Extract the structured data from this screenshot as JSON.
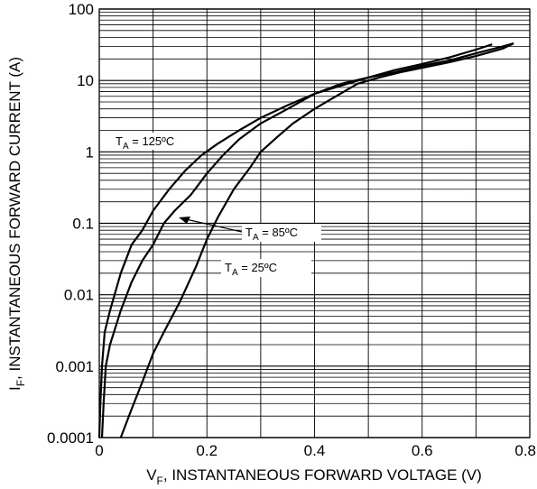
{
  "chart_data": {
    "type": "line",
    "x_scale": "linear",
    "y_scale": "log",
    "xlim": [
      0,
      0.8
    ],
    "ylim": [
      0.0001,
      100
    ],
    "grid": true,
    "x_ticks": [
      "0",
      "0.2",
      "0.4",
      "0.6",
      "0.8"
    ],
    "y_ticks": [
      "100",
      "10",
      "1",
      "0.1",
      "0.01",
      "0.001",
      "0.0001"
    ],
    "xlabel": {
      "main": "V",
      "sub": "F",
      "rest": ", INSTANTANEOUS FORWARD VOLTAGE (V)"
    },
    "ylabel": {
      "main": "I",
      "sub": "F",
      "rest": ", INSTANTANEOUS FORWARD CURRENT (A)"
    },
    "series": [
      {
        "name": {
          "main": "T",
          "sub": "A",
          "rest": " = 125ºC"
        },
        "x": [
          0.0,
          0.002,
          0.005,
          0.01,
          0.02,
          0.04,
          0.06,
          0.08,
          0.1,
          0.13,
          0.16,
          0.19,
          0.22,
          0.26,
          0.3,
          0.35,
          0.4,
          0.45,
          0.5,
          0.55,
          0.6,
          0.65,
          0.7,
          0.73
        ],
        "y": [
          0.0001,
          0.0003,
          0.001,
          0.003,
          0.006,
          0.02,
          0.05,
          0.08,
          0.15,
          0.3,
          0.55,
          0.9,
          1.3,
          2.0,
          3.0,
          4.5,
          6.5,
          8.5,
          11,
          14,
          17,
          21,
          27,
          32
        ]
      },
      {
        "name": {
          "main": "T",
          "sub": "A",
          "rest": " = 85ºC"
        },
        "x": [
          0.005,
          0.008,
          0.012,
          0.02,
          0.04,
          0.06,
          0.08,
          0.1,
          0.12,
          0.14,
          0.17,
          0.2,
          0.23,
          0.26,
          0.3,
          0.35,
          0.4,
          0.45,
          0.5,
          0.55,
          0.6,
          0.65,
          0.7,
          0.75,
          0.77
        ],
        "y": [
          0.0001,
          0.0003,
          0.001,
          0.002,
          0.006,
          0.015,
          0.03,
          0.05,
          0.1,
          0.15,
          0.25,
          0.5,
          0.9,
          1.5,
          2.5,
          4.0,
          6.5,
          9.0,
          11,
          13,
          16,
          19,
          24,
          30,
          33
        ]
      },
      {
        "name": {
          "main": "T",
          "sub": "A",
          "rest": " = 25ºC"
        },
        "x": [
          0.04,
          0.06,
          0.08,
          0.1,
          0.12,
          0.15,
          0.18,
          0.2,
          0.22,
          0.25,
          0.28,
          0.3,
          0.33,
          0.36,
          0.4,
          0.44,
          0.48,
          0.52,
          0.56,
          0.6,
          0.65,
          0.7,
          0.75,
          0.77
        ],
        "y": [
          0.0001,
          0.00025,
          0.0006,
          0.0015,
          0.003,
          0.008,
          0.025,
          0.06,
          0.12,
          0.3,
          0.6,
          1.0,
          1.6,
          2.5,
          4.0,
          6.0,
          9.0,
          11,
          13,
          15,
          18,
          22,
          28,
          33
        ]
      }
    ],
    "annotations": [
      {
        "main": "T",
        "sub": "A",
        "rest": " = 125ºC"
      },
      {
        "main": "T",
        "sub": "A",
        "rest": " = 85ºC"
      },
      {
        "main": "T",
        "sub": "A",
        "rest": " = 25ºC"
      }
    ]
  }
}
